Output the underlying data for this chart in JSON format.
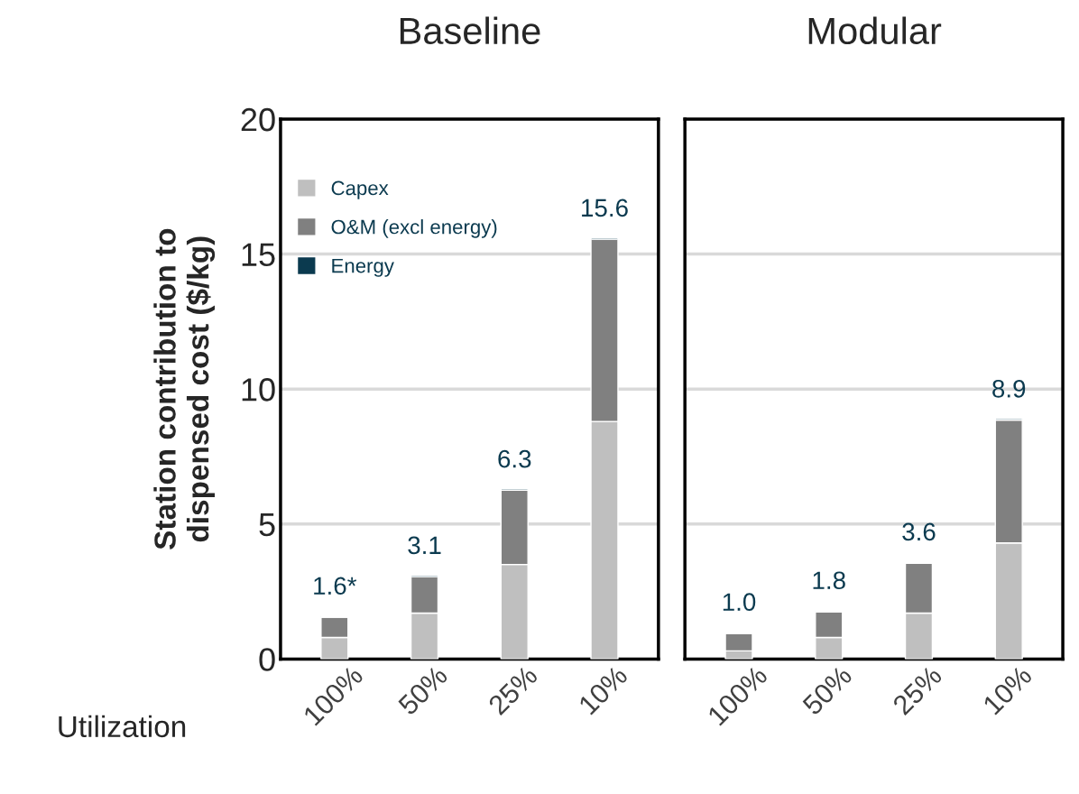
{
  "chart_data": [
    {
      "type": "bar",
      "title": "Baseline",
      "ylabel": "Station contribution to\ndispensed cost ($/kg)",
      "categories": [
        "100%",
        "50%",
        "25%",
        "10%"
      ],
      "stacked": true,
      "series": [
        {
          "name": "Capex",
          "color": "#bfbfbf",
          "values": [
            0.8,
            1.7,
            3.5,
            8.8
          ]
        },
        {
          "name": "O&M (excl energy)",
          "color": "#808080",
          "values": [
            0.75,
            1.35,
            2.75,
            6.75
          ]
        },
        {
          "name": "Energy",
          "color": "#0b3a4f",
          "values": [
            0.05,
            0.05,
            0.05,
            0.05
          ]
        }
      ],
      "totals": [
        "1.6*",
        "3.1",
        "6.3",
        "15.6"
      ],
      "ylim": [
        0,
        20
      ],
      "yticks": [
        0,
        5,
        10,
        15,
        20
      ],
      "grid": "y",
      "legend": "top left",
      "annotations": [
        "Utilization"
      ]
    },
    {
      "type": "bar",
      "title": "Modular",
      "categories": [
        "100%",
        "50%",
        "25%",
        "10%"
      ],
      "stacked": true,
      "series": [
        {
          "color": "#bfbfbf",
          "values": [
            0.3,
            0.8,
            1.7,
            4.3
          ]
        },
        {
          "color": "#808080",
          "values": [
            0.65,
            0.95,
            1.85,
            4.55
          ]
        },
        {
          "color": "#0b3a4f",
          "values": [
            0.05,
            0.05,
            0.05,
            0.05
          ]
        }
      ],
      "totals": [
        "1.0",
        "1.8",
        "3.6",
        "8.9"
      ],
      "ylim": [
        0,
        20
      ],
      "yticks": [
        0,
        5,
        10,
        15,
        20
      ],
      "grid": "y",
      "tick_labels": "x"
    }
  ]
}
